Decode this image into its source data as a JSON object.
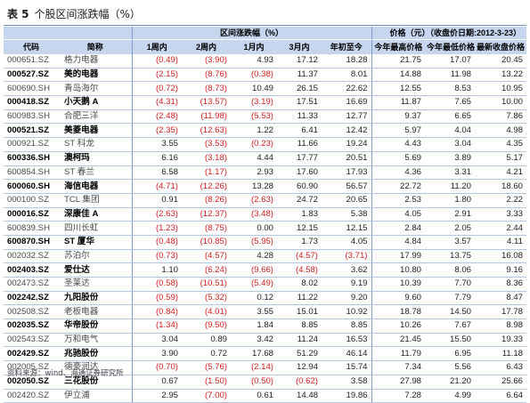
{
  "title": {
    "label": "表 5",
    "text": "个股区间涨跌幅（%）"
  },
  "header": {
    "group_change": "区间涨跌幅（%）",
    "group_price": "价格（元）（收盘价日期:",
    "date": "2012-3-23）",
    "columns": [
      "代码",
      "简称",
      "1周内",
      "2周内",
      "1月内",
      "3月内",
      "年初至今",
      "今年最高价格",
      "今年最低价格",
      "最新收盘价格"
    ]
  },
  "rows": [
    {
      "code": "000651.SZ",
      "name": "格力电器",
      "w1": "(0.49)",
      "w2": "(3.90)",
      "m1": "4.93",
      "m3": "17.12",
      "ytd": "18.28",
      "hi": "21.75",
      "lo": "17.07",
      "last": "20.45"
    },
    {
      "code": "000527.SZ",
      "name": "美的电器",
      "w1": "(2.15)",
      "w2": "(8.76)",
      "m1": "(0.38)",
      "m3": "11.37",
      "ytd": "8.01",
      "hi": "14.88",
      "lo": "11.98",
      "last": "13.22"
    },
    {
      "code": "600690.SH",
      "name": "青岛海尔",
      "w1": "(0.72)",
      "w2": "(8.73)",
      "m1": "10.49",
      "m3": "26.15",
      "ytd": "22.62",
      "hi": "12.55",
      "lo": "8.53",
      "last": "10.95"
    },
    {
      "code": "000418.SZ",
      "name": "小天鹅 A",
      "w1": "(4.31)",
      "w2": "(13.57)",
      "m1": "(3.19)",
      "m3": "17.51",
      "ytd": "16.69",
      "hi": "11.87",
      "lo": "7.65",
      "last": "10.00"
    },
    {
      "code": "600983.SH",
      "name": "合肥三洋",
      "w1": "(2.48)",
      "w2": "(11.98)",
      "m1": "(5.53)",
      "m3": "11.33",
      "ytd": "12.77",
      "hi": "9.37",
      "lo": "6.65",
      "last": "7.86"
    },
    {
      "code": "000521.SZ",
      "name": "美菱电器",
      "w1": "(2.35)",
      "w2": "(12.63)",
      "m1": "1.22",
      "m3": "6.41",
      "ytd": "12.42",
      "hi": "5.97",
      "lo": "4.04",
      "last": "4.98"
    },
    {
      "code": "000921.SZ",
      "name": "ST 科龙",
      "w1": "3.55",
      "w2": "(3.53)",
      "m1": "(0.23)",
      "m3": "11.66",
      "ytd": "19.24",
      "hi": "4.43",
      "lo": "3.04",
      "last": "4.35"
    },
    {
      "code": "600336.SH",
      "name": "澳柯玛",
      "w1": "6.16",
      "w2": "(3.18)",
      "m1": "4.44",
      "m3": "17.77",
      "ytd": "20.51",
      "hi": "5.69",
      "lo": "3.89",
      "last": "5.17"
    },
    {
      "code": "600854.SH",
      "name": "ST 春兰",
      "w1": "6.58",
      "w2": "(1.17)",
      "m1": "2.93",
      "m3": "17.60",
      "ytd": "17.93",
      "hi": "4.36",
      "lo": "3.31",
      "last": "4.21"
    },
    {
      "code": "600060.SH",
      "name": "海信电器",
      "w1": "(4.71)",
      "w2": "(12.26)",
      "m1": "13.28",
      "m3": "60.90",
      "ytd": "56.57",
      "hi": "22.72",
      "lo": "11.20",
      "last": "18.60"
    },
    {
      "code": "000100.SZ",
      "name": "TCL 集团",
      "w1": "0.91",
      "w2": "(8.26)",
      "m1": "(2.63)",
      "m3": "24.72",
      "ytd": "20.65",
      "hi": "2.53",
      "lo": "1.80",
      "last": "2.22"
    },
    {
      "code": "000016.SZ",
      "name": "深康佳 A",
      "w1": "(2.63)",
      "w2": "(12.37)",
      "m1": "(3.48)",
      "m3": "1.83",
      "ytd": "5.38",
      "hi": "4.05",
      "lo": "2.91",
      "last": "3.33"
    },
    {
      "code": "600839.SH",
      "name": "四川长虹",
      "w1": "(1.23)",
      "w2": "(8.75)",
      "m1": "0.00",
      "m3": "12.15",
      "ytd": "12.15",
      "hi": "2.84",
      "lo": "2.05",
      "last": "2.44"
    },
    {
      "code": "600870.SH",
      "name": "ST 厦华",
      "w1": "(0.48)",
      "w2": "(10.85)",
      "m1": "(5.95)",
      "m3": "1.73",
      "ytd": "4.05",
      "hi": "4.84",
      "lo": "3.57",
      "last": "4.11"
    },
    {
      "code": "002032.SZ",
      "name": "苏泊尔",
      "w1": "(0.73)",
      "w2": "(4.57)",
      "m1": "4.28",
      "m3": "(4.57)",
      "ytd": "(3.71)",
      "hi": "17.99",
      "lo": "13.75",
      "last": "16.08"
    },
    {
      "code": "002403.SZ",
      "name": "爱仕达",
      "w1": "1.10",
      "w2": "(6.24)",
      "m1": "(9.66)",
      "m3": "(4.58)",
      "ytd": "3.62",
      "hi": "10.80",
      "lo": "8.06",
      "last": "9.16"
    },
    {
      "code": "002473.SZ",
      "name": "圣莱达",
      "w1": "(0.58)",
      "w2": "(10.51)",
      "m1": "(5.49)",
      "m3": "8.02",
      "ytd": "9.19",
      "hi": "10.39",
      "lo": "7.70",
      "last": "8.36"
    },
    {
      "code": "002242.SZ",
      "name": "九阳股份",
      "w1": "(0.59)",
      "w2": "(5.32)",
      "m1": "0.12",
      "m3": "11.22",
      "ytd": "9.20",
      "hi": "9.60",
      "lo": "7.79",
      "last": "8.47"
    },
    {
      "code": "002508.SZ",
      "name": "老板电器",
      "w1": "(0.84)",
      "w2": "(4.01)",
      "m1": "3.55",
      "m3": "15.01",
      "ytd": "10.92",
      "hi": "18.78",
      "lo": "14.50",
      "last": "17.78"
    },
    {
      "code": "002035.SZ",
      "name": "华帝股份",
      "w1": "(1.34)",
      "w2": "(9.50)",
      "m1": "1.84",
      "m3": "8.85",
      "ytd": "8.85",
      "hi": "10.26",
      "lo": "7.67",
      "last": "8.98"
    },
    {
      "code": "002543.SZ",
      "name": "万和电气",
      "w1": "3.04",
      "w2": "0.89",
      "m1": "3.42",
      "m3": "11.24",
      "ytd": "16.53",
      "hi": "21.45",
      "lo": "15.50",
      "last": "19.33"
    },
    {
      "code": "002429.SZ",
      "name": "兆驰股份",
      "w1": "3.90",
      "w2": "0.72",
      "m1": "17.68",
      "m3": "51.29",
      "ytd": "46.14",
      "hi": "11.79",
      "lo": "6.95",
      "last": "11.18"
    },
    {
      "code": "002005.SZ",
      "name": "德豪润达",
      "w1": "(0.70)",
      "w2": "(5.76)",
      "m1": "(2.14)",
      "m3": "12.94",
      "ytd": "15.74",
      "hi": "7.34",
      "lo": "5.56",
      "last": "6.43"
    },
    {
      "code": "002050.SZ",
      "name": "三花股份",
      "w1": "0.67",
      "w2": "(1.50)",
      "m1": "(0.50)",
      "m3": "(0.62)",
      "ytd": "3.58",
      "hi": "27.98",
      "lo": "21.20",
      "last": "25.66"
    },
    {
      "code": "002420.SZ",
      "name": "伊立浦",
      "w1": "2.95",
      "w2": "(7.00)",
      "m1": "0.61",
      "m3": "14.48",
      "ytd": "19.86",
      "hi": "7.28",
      "lo": "4.99",
      "last": "6.64"
    }
  ],
  "source": "资料来源：wind、海通证券研究所"
}
